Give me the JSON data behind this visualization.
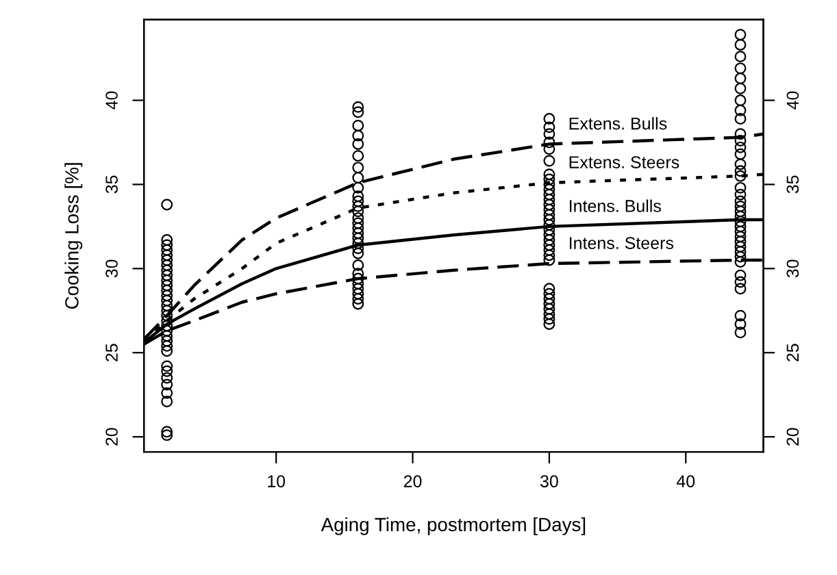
{
  "chart_data": {
    "type": "line",
    "xlabel": "Aging Time, postmortem [Days]",
    "ylabel": "Cooking Loss [%]",
    "xlim": [
      0.32,
      45.68
    ],
    "xticks": [
      10,
      20,
      30,
      40
    ],
    "ylim": [
      19.1,
      44.8
    ],
    "yticks": [
      20,
      25,
      30,
      35,
      40
    ],
    "y2lim": [
      19.1,
      44.8
    ],
    "y2ticks": [
      20,
      25,
      30,
      35,
      40
    ],
    "grid": false,
    "legend": false,
    "series": [
      {
        "type": "scatter",
        "color": "#000000",
        "marker": "circle",
        "x": [
          2,
          2,
          2,
          2,
          2,
          2,
          2,
          2,
          2,
          2,
          2,
          2,
          2,
          2,
          2,
          2,
          2,
          2,
          2,
          2,
          2,
          2,
          2,
          2,
          2,
          2,
          2,
          2,
          2,
          2,
          2,
          2,
          16,
          16,
          16,
          16,
          16,
          16,
          16,
          16,
          16,
          16,
          16,
          16,
          16,
          16,
          16,
          16,
          16,
          16,
          16,
          16,
          16,
          16,
          16,
          16,
          16,
          16,
          16,
          16,
          16,
          30,
          30,
          30,
          30,
          30,
          30,
          30,
          30,
          30,
          30,
          30,
          30,
          30,
          30,
          30,
          30,
          30,
          30,
          30,
          30,
          30,
          30,
          30,
          30,
          30,
          30,
          30,
          30,
          30,
          30,
          30,
          30,
          44,
          44,
          44,
          44,
          44,
          44,
          44,
          44,
          44,
          44,
          44,
          44,
          44,
          44,
          44,
          44,
          44,
          44,
          44,
          44,
          44,
          44,
          44,
          44,
          44,
          44,
          44,
          44,
          44,
          44,
          44,
          44,
          44,
          44,
          44,
          44,
          44
        ],
        "values": [
          33.8,
          31.7,
          31.4,
          31.1,
          30.8,
          30.5,
          30.2,
          29.9,
          29.6,
          29.3,
          29.0,
          28.7,
          28.4,
          28.1,
          27.8,
          27.5,
          27.2,
          26.9,
          26.6,
          26.3,
          26.0,
          25.7,
          25.4,
          25.1,
          24.2,
          23.9,
          23.5,
          23.1,
          22.6,
          22.1,
          20.3,
          20.1,
          39.6,
          39.3,
          38.5,
          37.9,
          37.4,
          36.7,
          36.0,
          35.4,
          34.8,
          34.3,
          34.0,
          33.7,
          33.4,
          33.0,
          32.7,
          32.4,
          32.1,
          31.8,
          31.5,
          31.2,
          30.9,
          30.2,
          29.7,
          29.4,
          29.1,
          28.8,
          28.5,
          28.2,
          27.9,
          38.9,
          38.4,
          38.0,
          37.5,
          37.1,
          36.4,
          35.6,
          35.3,
          35.0,
          34.7,
          34.4,
          34.1,
          33.8,
          33.5,
          33.2,
          32.9,
          32.6,
          32.3,
          32.0,
          31.7,
          31.4,
          31.1,
          30.8,
          30.5,
          28.8,
          28.5,
          28.2,
          27.9,
          27.6,
          27.3,
          27.0,
          26.7,
          43.9,
          43.3,
          42.6,
          41.9,
          41.3,
          40.7,
          40.0,
          39.4,
          38.9,
          38.0,
          37.6,
          37.2,
          36.8,
          36.2,
          35.8,
          35.5,
          34.8,
          34.4,
          34.0,
          33.7,
          33.4,
          33.1,
          32.8,
          32.5,
          32.2,
          31.9,
          31.6,
          31.3,
          31.0,
          30.7,
          30.4,
          29.6,
          29.2,
          28.8,
          27.2,
          26.7,
          26.2
        ]
      },
      {
        "name": "Extens. Bulls",
        "color": "#000000",
        "line_style": "dashed",
        "x": [
          0.32,
          2,
          4,
          7.5,
          10,
          16,
          23,
          30,
          44,
          45.68
        ],
        "values": [
          25.8,
          27.2,
          29.0,
          31.7,
          33.0,
          35.1,
          36.5,
          37.4,
          37.8,
          38.0
        ]
      },
      {
        "name": "Extens. Steers",
        "color": "#000000",
        "line_style": "dotted",
        "x": [
          0.32,
          2,
          4,
          7.5,
          10,
          16,
          23,
          30,
          44,
          45.68
        ],
        "values": [
          25.7,
          26.9,
          28.2,
          30.0,
          31.5,
          33.6,
          34.5,
          35.1,
          35.5,
          35.6
        ]
      },
      {
        "name": "Intens. Bulls",
        "color": "#000000",
        "line_style": "solid",
        "x": [
          0.32,
          2,
          4,
          7.5,
          10,
          16,
          23,
          30,
          44,
          45.68
        ],
        "values": [
          25.6,
          26.7,
          27.6,
          29.1,
          30.0,
          31.4,
          32.0,
          32.5,
          32.9,
          32.9
        ]
      },
      {
        "name": "Intens. Steers",
        "color": "#000000",
        "line_style": "dashed",
        "x": [
          0.32,
          2,
          4,
          7.5,
          10,
          16,
          23,
          30,
          44,
          45.68
        ],
        "values": [
          25.5,
          26.3,
          26.9,
          28.0,
          28.5,
          29.4,
          29.9,
          30.3,
          30.5,
          30.5
        ]
      }
    ]
  }
}
